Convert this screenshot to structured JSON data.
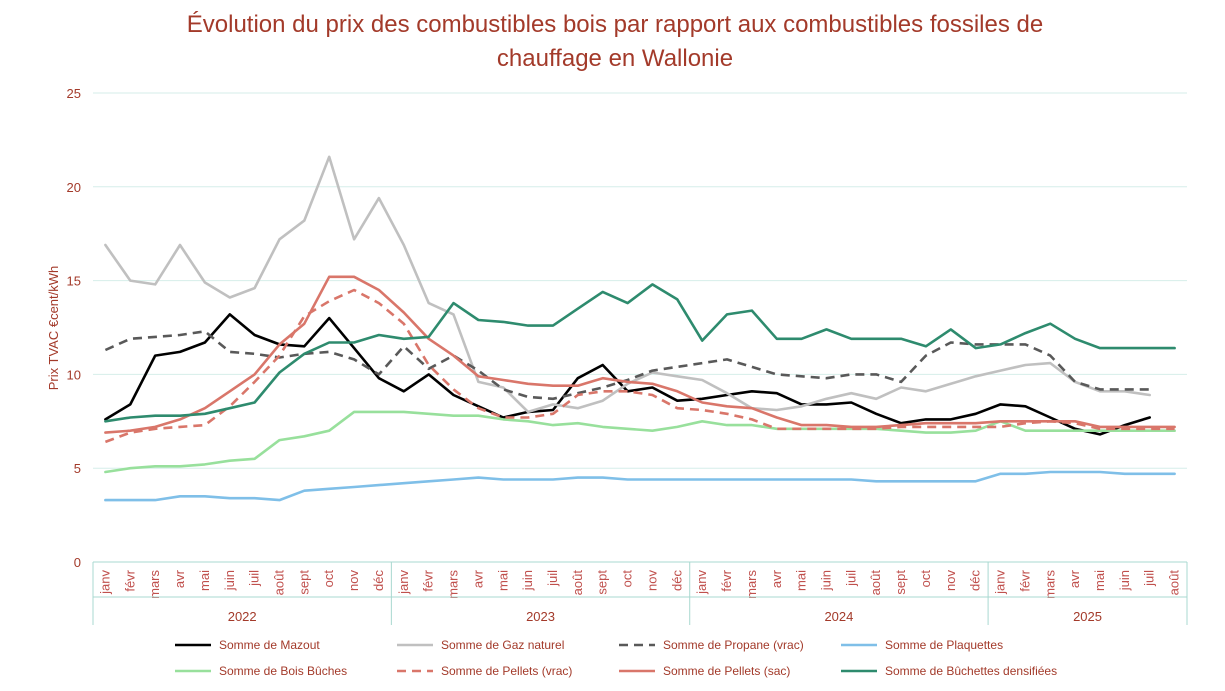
{
  "chart_data": {
    "type": "line",
    "title_line1": "Évolution du prix des combustibles bois par rapport aux combustibles fossiles de",
    "title_line2": "chauffage en Wallonie",
    "ylabel": "Prix  TVAC €cent/kWh",
    "xlabel": "",
    "ylim": [
      0,
      25
    ],
    "yticks": [
      0,
      5,
      10,
      15,
      20,
      25
    ],
    "grid": true,
    "legend_position": "bottom",
    "months": [
      "janv",
      "févr",
      "mars",
      "avr",
      "mai",
      "juin",
      "juil",
      "août",
      "sept",
      "oct",
      "nov",
      "déc",
      "janv",
      "févr",
      "mars",
      "avr",
      "mai",
      "juin",
      "juil",
      "août",
      "sept",
      "oct",
      "nov",
      "déc",
      "janv",
      "févr",
      "mars",
      "avr",
      "mai",
      "juin",
      "juil",
      "août",
      "sept",
      "oct",
      "nov",
      "déc",
      "janv",
      "févr",
      "mars",
      "avr",
      "mai",
      "juin",
      "juil",
      "août"
    ],
    "years": [
      {
        "label": "2022",
        "count": 12
      },
      {
        "label": "2023",
        "count": 12
      },
      {
        "label": "2024",
        "count": 12
      },
      {
        "label": "2025",
        "count": 8
      }
    ],
    "series": [
      {
        "name": "Somme de Mazout",
        "color": "#000000",
        "dash": "solid",
        "values": [
          7.6,
          8.4,
          11.0,
          11.2,
          11.7,
          13.2,
          12.1,
          11.6,
          11.5,
          13.0,
          11.4,
          9.8,
          9.1,
          10.0,
          8.9,
          8.3,
          7.7,
          8.0,
          8.1,
          9.8,
          10.5,
          9.1,
          9.3,
          8.6,
          8.7,
          8.9,
          9.1,
          9.0,
          8.4,
          8.4,
          8.5,
          7.9,
          7.4,
          7.6,
          7.6,
          7.9,
          8.4,
          8.3,
          7.7,
          7.1,
          6.8,
          7.3,
          7.7,
          null
        ]
      },
      {
        "name": "Somme de Gaz naturel",
        "color": "#c0c0c0",
        "dash": "solid",
        "values": [
          16.9,
          15.0,
          14.8,
          16.9,
          14.9,
          14.1,
          14.6,
          17.2,
          18.2,
          21.6,
          17.2,
          19.4,
          16.9,
          13.8,
          13.2,
          9.6,
          9.3,
          8.0,
          8.4,
          8.2,
          8.6,
          9.5,
          10.1,
          9.9,
          9.7,
          9.0,
          8.2,
          8.1,
          8.3,
          8.7,
          9.0,
          8.7,
          9.3,
          9.1,
          9.5,
          9.9,
          10.2,
          10.5,
          10.6,
          9.6,
          9.1,
          9.1,
          8.9,
          null
        ]
      },
      {
        "name": "Somme de Propane (vrac)",
        "color": "#595959",
        "dash": "dash",
        "values": [
          11.3,
          11.9,
          12.0,
          12.1,
          12.3,
          11.2,
          11.1,
          10.9,
          11.1,
          11.2,
          10.8,
          10.0,
          11.5,
          10.3,
          11.0,
          10.2,
          9.2,
          8.8,
          8.7,
          9.0,
          9.3,
          9.7,
          10.2,
          10.4,
          10.6,
          10.8,
          10.4,
          10.0,
          9.9,
          9.8,
          10.0,
          10.0,
          9.6,
          11.0,
          11.7,
          11.6,
          11.6,
          11.6,
          11.0,
          9.6,
          9.2,
          9.2,
          9.2,
          null
        ]
      },
      {
        "name": "Somme de Plaquettes",
        "color": "#7fbfe8",
        "dash": "solid",
        "values": [
          3.3,
          3.3,
          3.3,
          3.5,
          3.5,
          3.4,
          3.4,
          3.3,
          3.8,
          3.9,
          4.0,
          4.1,
          4.2,
          4.3,
          4.4,
          4.5,
          4.4,
          4.4,
          4.4,
          4.5,
          4.5,
          4.4,
          4.4,
          4.4,
          4.4,
          4.4,
          4.4,
          4.4,
          4.4,
          4.4,
          4.4,
          4.3,
          4.3,
          4.3,
          4.3,
          4.3,
          4.7,
          4.7,
          4.8,
          4.8,
          4.8,
          4.7,
          4.7,
          4.7
        ]
      },
      {
        "name": "Somme de Bois Bûches",
        "color": "#98e09c",
        "dash": "solid",
        "values": [
          4.8,
          5.0,
          5.1,
          5.1,
          5.2,
          5.4,
          5.5,
          6.5,
          6.7,
          7.0,
          8.0,
          8.0,
          8.0,
          7.9,
          7.8,
          7.8,
          7.6,
          7.5,
          7.3,
          7.4,
          7.2,
          7.1,
          7.0,
          7.2,
          7.5,
          7.3,
          7.3,
          7.1,
          7.1,
          7.1,
          7.1,
          7.1,
          7.0,
          6.9,
          6.9,
          7.0,
          7.5,
          7.0,
          7.0,
          7.0,
          7.0,
          7.0,
          7.0,
          7.0
        ]
      },
      {
        "name": "Somme de Pellets (vrac)",
        "color": "#d9766a",
        "dash": "dash",
        "values": [
          6.4,
          6.9,
          7.1,
          7.2,
          7.3,
          8.3,
          9.6,
          11.0,
          13.1,
          13.9,
          14.5,
          13.8,
          12.7,
          10.5,
          9.2,
          8.2,
          7.7,
          7.7,
          7.9,
          8.9,
          9.1,
          9.1,
          8.9,
          8.2,
          8.1,
          7.9,
          7.6,
          7.1,
          7.1,
          7.1,
          7.1,
          7.1,
          7.2,
          7.2,
          7.2,
          7.2,
          7.2,
          7.4,
          7.5,
          7.4,
          7.1,
          7.1,
          7.1,
          7.1
        ]
      },
      {
        "name": "Somme de Pellets (sac)",
        "color": "#d9766a",
        "dash": "solid",
        "values": [
          6.9,
          7.0,
          7.2,
          7.6,
          8.2,
          9.1,
          10.0,
          11.6,
          12.7,
          15.2,
          15.2,
          14.5,
          13.3,
          11.9,
          11.0,
          9.9,
          9.7,
          9.5,
          9.4,
          9.4,
          9.8,
          9.6,
          9.5,
          9.1,
          8.5,
          8.3,
          8.2,
          7.7,
          7.3,
          7.3,
          7.2,
          7.2,
          7.3,
          7.4,
          7.4,
          7.4,
          7.5,
          7.5,
          7.5,
          7.5,
          7.2,
          7.2,
          7.2,
          7.2
        ]
      },
      {
        "name": "Somme de Bûchettes densifiées",
        "color": "#2e8b6e",
        "dash": "solid",
        "values": [
          7.5,
          7.7,
          7.8,
          7.8,
          7.9,
          8.2,
          8.5,
          10.1,
          11.1,
          11.7,
          11.7,
          12.1,
          11.9,
          12.0,
          13.8,
          12.9,
          12.8,
          12.6,
          12.6,
          13.5,
          14.4,
          13.8,
          14.8,
          14.0,
          11.8,
          13.2,
          13.4,
          11.9,
          11.9,
          12.4,
          11.9,
          11.9,
          11.9,
          11.5,
          12.4,
          11.4,
          11.6,
          12.2,
          12.7,
          11.9,
          11.4,
          11.4,
          11.4,
          11.4
        ]
      }
    ]
  }
}
